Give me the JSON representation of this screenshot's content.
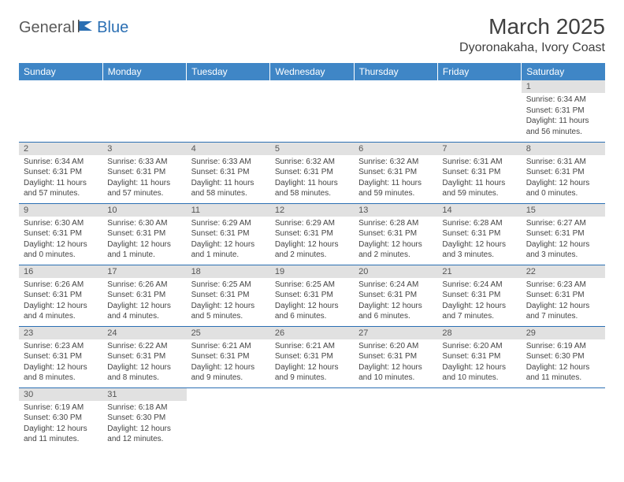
{
  "logo": {
    "part1": "General",
    "part2": "Blue"
  },
  "title": "March 2025",
  "location": "Dyoronakaha, Ivory Coast",
  "colors": {
    "header_bg": "#3f86c6",
    "header_text": "#ffffff",
    "daynum_bg": "#e1e1e1",
    "border": "#2b6fb3",
    "logo_gray": "#5a5a5a",
    "logo_blue": "#2b6fb3"
  },
  "weekdays": [
    "Sunday",
    "Monday",
    "Tuesday",
    "Wednesday",
    "Thursday",
    "Friday",
    "Saturday"
  ],
  "weeks": [
    [
      null,
      null,
      null,
      null,
      null,
      null,
      {
        "n": "1",
        "sunrise": "Sunrise: 6:34 AM",
        "sunset": "Sunset: 6:31 PM",
        "daylight": "Daylight: 11 hours and 56 minutes."
      }
    ],
    [
      {
        "n": "2",
        "sunrise": "Sunrise: 6:34 AM",
        "sunset": "Sunset: 6:31 PM",
        "daylight": "Daylight: 11 hours and 57 minutes."
      },
      {
        "n": "3",
        "sunrise": "Sunrise: 6:33 AM",
        "sunset": "Sunset: 6:31 PM",
        "daylight": "Daylight: 11 hours and 57 minutes."
      },
      {
        "n": "4",
        "sunrise": "Sunrise: 6:33 AM",
        "sunset": "Sunset: 6:31 PM",
        "daylight": "Daylight: 11 hours and 58 minutes."
      },
      {
        "n": "5",
        "sunrise": "Sunrise: 6:32 AM",
        "sunset": "Sunset: 6:31 PM",
        "daylight": "Daylight: 11 hours and 58 minutes."
      },
      {
        "n": "6",
        "sunrise": "Sunrise: 6:32 AM",
        "sunset": "Sunset: 6:31 PM",
        "daylight": "Daylight: 11 hours and 59 minutes."
      },
      {
        "n": "7",
        "sunrise": "Sunrise: 6:31 AM",
        "sunset": "Sunset: 6:31 PM",
        "daylight": "Daylight: 11 hours and 59 minutes."
      },
      {
        "n": "8",
        "sunrise": "Sunrise: 6:31 AM",
        "sunset": "Sunset: 6:31 PM",
        "daylight": "Daylight: 12 hours and 0 minutes."
      }
    ],
    [
      {
        "n": "9",
        "sunrise": "Sunrise: 6:30 AM",
        "sunset": "Sunset: 6:31 PM",
        "daylight": "Daylight: 12 hours and 0 minutes."
      },
      {
        "n": "10",
        "sunrise": "Sunrise: 6:30 AM",
        "sunset": "Sunset: 6:31 PM",
        "daylight": "Daylight: 12 hours and 1 minute."
      },
      {
        "n": "11",
        "sunrise": "Sunrise: 6:29 AM",
        "sunset": "Sunset: 6:31 PM",
        "daylight": "Daylight: 12 hours and 1 minute."
      },
      {
        "n": "12",
        "sunrise": "Sunrise: 6:29 AM",
        "sunset": "Sunset: 6:31 PM",
        "daylight": "Daylight: 12 hours and 2 minutes."
      },
      {
        "n": "13",
        "sunrise": "Sunrise: 6:28 AM",
        "sunset": "Sunset: 6:31 PM",
        "daylight": "Daylight: 12 hours and 2 minutes."
      },
      {
        "n": "14",
        "sunrise": "Sunrise: 6:28 AM",
        "sunset": "Sunset: 6:31 PM",
        "daylight": "Daylight: 12 hours and 3 minutes."
      },
      {
        "n": "15",
        "sunrise": "Sunrise: 6:27 AM",
        "sunset": "Sunset: 6:31 PM",
        "daylight": "Daylight: 12 hours and 3 minutes."
      }
    ],
    [
      {
        "n": "16",
        "sunrise": "Sunrise: 6:26 AM",
        "sunset": "Sunset: 6:31 PM",
        "daylight": "Daylight: 12 hours and 4 minutes."
      },
      {
        "n": "17",
        "sunrise": "Sunrise: 6:26 AM",
        "sunset": "Sunset: 6:31 PM",
        "daylight": "Daylight: 12 hours and 4 minutes."
      },
      {
        "n": "18",
        "sunrise": "Sunrise: 6:25 AM",
        "sunset": "Sunset: 6:31 PM",
        "daylight": "Daylight: 12 hours and 5 minutes."
      },
      {
        "n": "19",
        "sunrise": "Sunrise: 6:25 AM",
        "sunset": "Sunset: 6:31 PM",
        "daylight": "Daylight: 12 hours and 6 minutes."
      },
      {
        "n": "20",
        "sunrise": "Sunrise: 6:24 AM",
        "sunset": "Sunset: 6:31 PM",
        "daylight": "Daylight: 12 hours and 6 minutes."
      },
      {
        "n": "21",
        "sunrise": "Sunrise: 6:24 AM",
        "sunset": "Sunset: 6:31 PM",
        "daylight": "Daylight: 12 hours and 7 minutes."
      },
      {
        "n": "22",
        "sunrise": "Sunrise: 6:23 AM",
        "sunset": "Sunset: 6:31 PM",
        "daylight": "Daylight: 12 hours and 7 minutes."
      }
    ],
    [
      {
        "n": "23",
        "sunrise": "Sunrise: 6:23 AM",
        "sunset": "Sunset: 6:31 PM",
        "daylight": "Daylight: 12 hours and 8 minutes."
      },
      {
        "n": "24",
        "sunrise": "Sunrise: 6:22 AM",
        "sunset": "Sunset: 6:31 PM",
        "daylight": "Daylight: 12 hours and 8 minutes."
      },
      {
        "n": "25",
        "sunrise": "Sunrise: 6:21 AM",
        "sunset": "Sunset: 6:31 PM",
        "daylight": "Daylight: 12 hours and 9 minutes."
      },
      {
        "n": "26",
        "sunrise": "Sunrise: 6:21 AM",
        "sunset": "Sunset: 6:31 PM",
        "daylight": "Daylight: 12 hours and 9 minutes."
      },
      {
        "n": "27",
        "sunrise": "Sunrise: 6:20 AM",
        "sunset": "Sunset: 6:31 PM",
        "daylight": "Daylight: 12 hours and 10 minutes."
      },
      {
        "n": "28",
        "sunrise": "Sunrise: 6:20 AM",
        "sunset": "Sunset: 6:31 PM",
        "daylight": "Daylight: 12 hours and 10 minutes."
      },
      {
        "n": "29",
        "sunrise": "Sunrise: 6:19 AM",
        "sunset": "Sunset: 6:30 PM",
        "daylight": "Daylight: 12 hours and 11 minutes."
      }
    ],
    [
      {
        "n": "30",
        "sunrise": "Sunrise: 6:19 AM",
        "sunset": "Sunset: 6:30 PM",
        "daylight": "Daylight: 12 hours and 11 minutes."
      },
      {
        "n": "31",
        "sunrise": "Sunrise: 6:18 AM",
        "sunset": "Sunset: 6:30 PM",
        "daylight": "Daylight: 12 hours and 12 minutes."
      },
      null,
      null,
      null,
      null,
      null
    ]
  ]
}
